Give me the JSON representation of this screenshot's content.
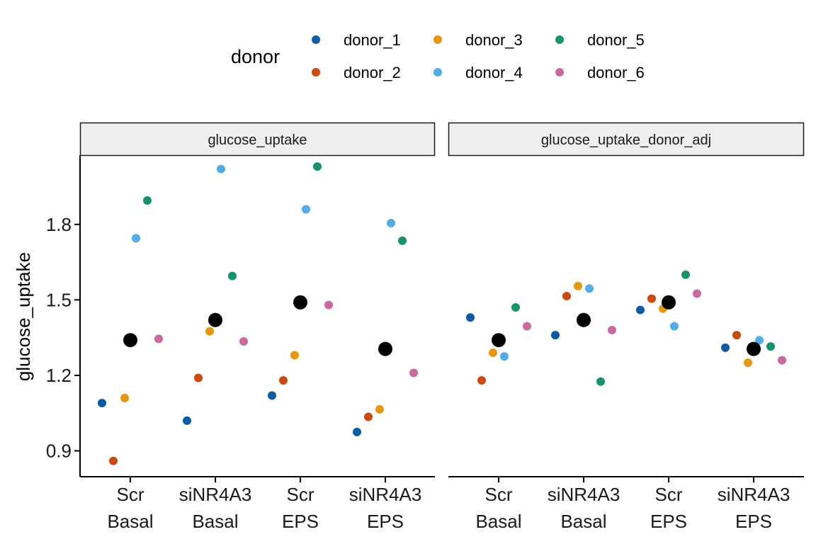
{
  "chart_data": {
    "type": "scatter",
    "ylabel": "glucose_uptake",
    "ylim": [
      0.8,
      2.05
    ],
    "yticks": [
      0.9,
      1.2,
      1.5,
      1.8
    ],
    "ytick_labels": [
      "0.9",
      "1.2",
      "1.5",
      "1.8"
    ],
    "categories": [
      {
        "line1": "Scr",
        "line2": "Basal"
      },
      {
        "line1": "siNR4A3",
        "line2": "Basal"
      },
      {
        "line1": "Scr",
        "line2": "EPS"
      },
      {
        "line1": "siNR4A3",
        "line2": "EPS"
      }
    ],
    "legend": {
      "title": "donor",
      "position": "top",
      "entries": [
        "donor_1",
        "donor_2",
        "donor_3",
        "donor_4",
        "donor_5",
        "donor_6"
      ]
    },
    "colors": {
      "donor_1": "#0B5AA2",
      "donor_2": "#CC4A0C",
      "donor_3": "#E6960F",
      "donor_4": "#52ACE6",
      "donor_5": "#15936A",
      "donor_6": "#C96AA1",
      "mean": "#000000"
    },
    "panels": [
      {
        "title": "glucose_uptake",
        "series": [
          {
            "name": "donor_1",
            "values": [
              1.09,
              1.02,
              1.12,
              0.975
            ]
          },
          {
            "name": "donor_2",
            "values": [
              0.86,
              1.19,
              1.18,
              1.035
            ]
          },
          {
            "name": "donor_3",
            "values": [
              1.11,
              1.375,
              1.28,
              1.065
            ]
          },
          {
            "name": "donor_4",
            "values": [
              1.745,
              2.02,
              1.86,
              1.805
            ]
          },
          {
            "name": "donor_5",
            "values": [
              1.895,
              1.595,
              2.03,
              1.735
            ]
          },
          {
            "name": "donor_6",
            "values": [
              1.345,
              1.335,
              1.48,
              1.21
            ]
          }
        ],
        "means": [
          1.34,
          1.42,
          1.49,
          1.305
        ]
      },
      {
        "title": "glucose_uptake_donor_adj",
        "series": [
          {
            "name": "donor_1",
            "values": [
              1.43,
              1.36,
              1.46,
              1.31
            ]
          },
          {
            "name": "donor_2",
            "values": [
              1.18,
              1.515,
              1.505,
              1.36
            ]
          },
          {
            "name": "donor_3",
            "values": [
              1.29,
              1.555,
              1.465,
              1.25
            ]
          },
          {
            "name": "donor_4",
            "values": [
              1.275,
              1.545,
              1.395,
              1.34
            ]
          },
          {
            "name": "donor_5",
            "values": [
              1.47,
              1.175,
              1.6,
              1.315
            ]
          },
          {
            "name": "donor_6",
            "values": [
              1.395,
              1.38,
              1.525,
              1.26
            ]
          }
        ],
        "means": [
          1.34,
          1.42,
          1.49,
          1.305
        ]
      }
    ]
  }
}
